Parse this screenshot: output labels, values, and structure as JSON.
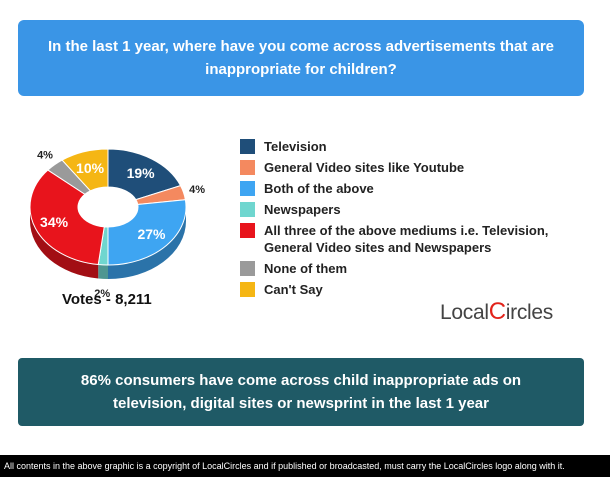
{
  "title": "In the last 1 year, where have you come across advertisements that are inappropriate for children?",
  "votes": "Votes - 8,211",
  "logo": {
    "pre": "Local",
    "c": "C",
    "post": "ircles"
  },
  "bottom_banner": "86% consumers have come across child inappropriate ads on television, digital sites or newsprint in the last 1 year",
  "footer": "All contents in the above graphic is a copyright of LocalCircles and if published or broadcasted, must carry the LocalCircles logo along with it.",
  "colors": {
    "title_bg": "#3a95e6",
    "bottom_bg": "#1f5a66",
    "logo_red": "#e2231a"
  },
  "chart_data": {
    "type": "pie",
    "variant": "donut-3d",
    "legend_placement": "right",
    "slices": [
      {
        "label": "Television",
        "value": 19,
        "display": "19%",
        "color": "#1f4e79"
      },
      {
        "label": "General Video sites like Youtube",
        "value": 4,
        "display": "4%",
        "color": "#f4895f"
      },
      {
        "label": "Both of the above",
        "value": 27,
        "display": "27%",
        "color": "#3ea5f2"
      },
      {
        "label": "Newspapers",
        "value": 2,
        "display": "2%",
        "color": "#6fd6cf"
      },
      {
        "label": "All three of the above mediums i.e. Television, General Video sites and Newspapers",
        "value": 34,
        "display": "34%",
        "color": "#e8141c"
      },
      {
        "label": "None of them",
        "value": 4,
        "display": "4%",
        "color": "#9a9a9a"
      },
      {
        "label": "Can't Say",
        "value": 10,
        "display": "10%",
        "color": "#f5b614"
      }
    ]
  }
}
